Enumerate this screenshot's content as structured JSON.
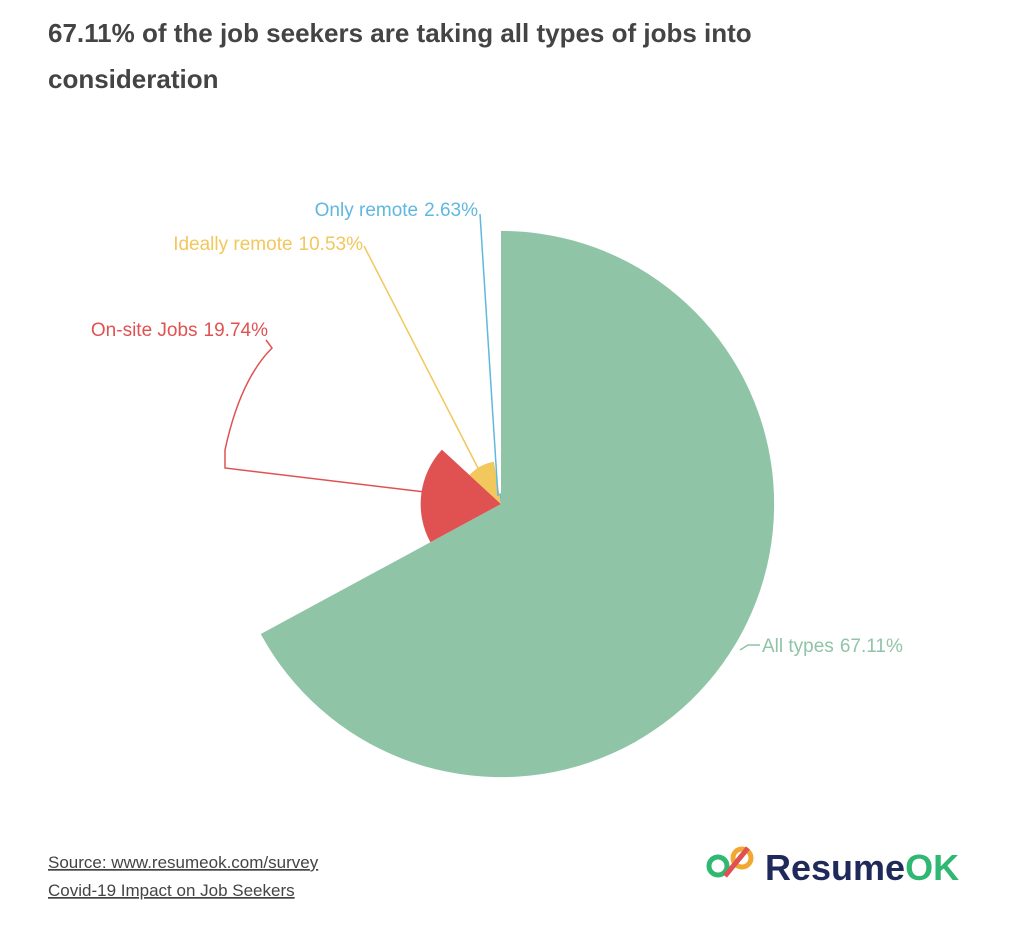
{
  "chart_data": {
    "type": "pie",
    "title": "67.11% of the job seekers are taking all types of jobs into consideration",
    "categories": [
      "All types",
      "On-site Jobs",
      "Ideally remote",
      "Only remote"
    ],
    "values": [
      67.11,
      19.74,
      10.53,
      2.63
    ],
    "value_labels": [
      "67.11%",
      "19.74%",
      "10.53%",
      "2.63%"
    ],
    "colors": [
      "#8fc4a6",
      "#e05252",
      "#f2c75c",
      "#5fb8e0"
    ],
    "source": "Source: www.resumeok.com/survey",
    "subtitle": "Covid-19 Impact on Job Seekers",
    "logo": [
      "Resume",
      "OK"
    ]
  }
}
